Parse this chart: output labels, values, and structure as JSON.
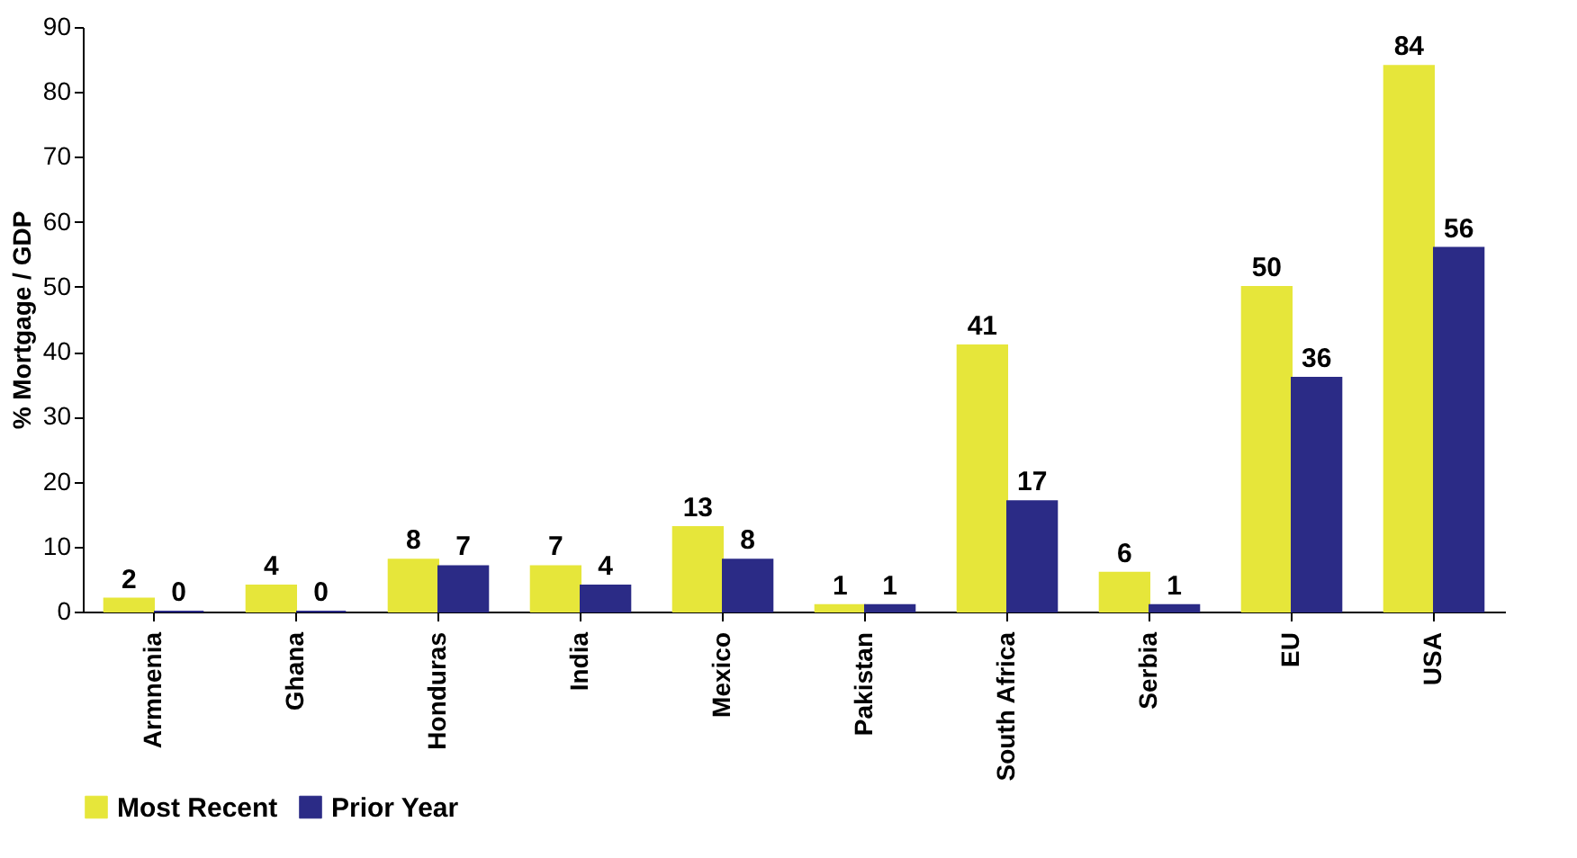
{
  "chart_data": {
    "type": "bar",
    "ylabel": "% Mortgage / GDP",
    "categories": [
      "Armnenia",
      "Ghana",
      "Honduras",
      "India",
      "Mexico",
      "Pakistan",
      "South Africa",
      "Serbia",
      "EU",
      "USA"
    ],
    "series": [
      {
        "name": "Most Recent",
        "color": "#e6e63a",
        "values": [
          2,
          4,
          8,
          7,
          13,
          1,
          41,
          6,
          50,
          84
        ]
      },
      {
        "name": "Prior Year",
        "color": "#2b2b86",
        "values": [
          0,
          0,
          7,
          4,
          8,
          1,
          17,
          1,
          36,
          56
        ]
      }
    ],
    "ylim": [
      0,
      90
    ],
    "yticks": [
      0,
      10,
      20,
      30,
      40,
      50,
      60,
      70,
      80,
      90
    ],
    "data_labels": true,
    "legend": "bottom"
  }
}
